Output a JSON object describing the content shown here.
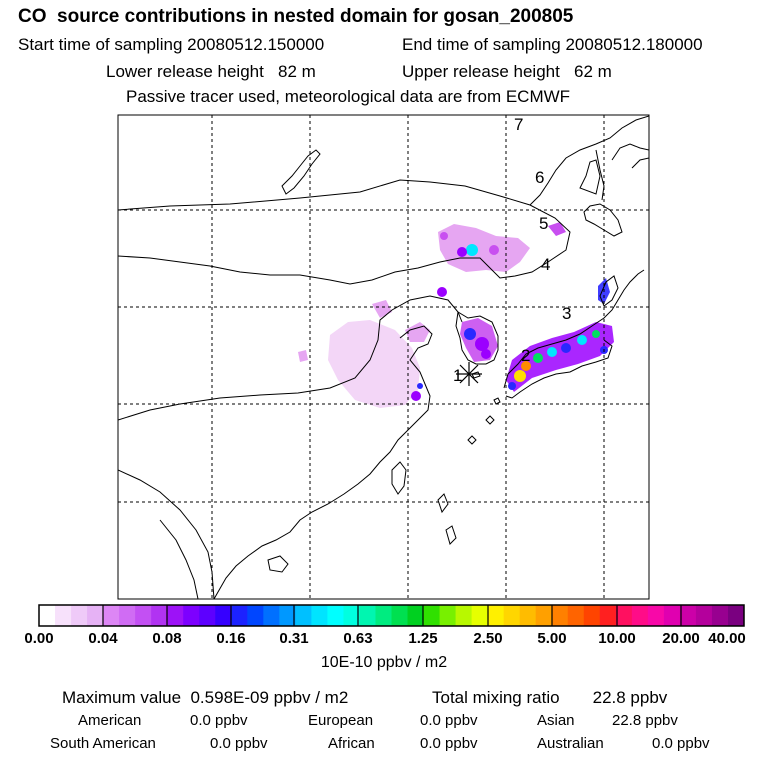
{
  "header": {
    "title": "CO  source contributions in nested domain for gosan_200805",
    "start_label": "Start time of sampling 20080512.150000",
    "end_label": "End time of sampling 20080512.180000",
    "lower_label": "Lower release height   82 m",
    "upper_label": "Upper release height   62 m",
    "tracer_note": "Passive tracer used, meteorological data are from ECMWF"
  },
  "map": {
    "release_marker": "asterisk-icon",
    "trajectory_labels": [
      "1",
      "2",
      "3",
      "4",
      "5",
      "6",
      "7"
    ],
    "plume_colors": {
      "faint": "#f3d6f7",
      "light": "#e6a6f2",
      "medium": "#c84ff0",
      "violet": "#9b00ff",
      "blue": "#2a28ff",
      "cyan": "#00e6ff",
      "green": "#00e060",
      "yellow": "#ffe000",
      "orange": "#ff8c00"
    }
  },
  "colorbar": {
    "ticks": [
      "0.00",
      "0.04",
      "0.08",
      "0.16",
      "0.31",
      "0.63",
      "1.25",
      "2.50",
      "5.00",
      "10.00",
      "20.00",
      "40.00"
    ],
    "unit_label": "10E-10 ppbv / m2",
    "colors": [
      "#ffffff",
      "#f7e1fb",
      "#efcaf8",
      "#e6b2f5",
      "#dd86f5",
      "#d06cf4",
      "#c350f3",
      "#b133f2",
      "#9d12f7",
      "#7d00ff",
      "#5d00ff",
      "#3600ff",
      "#1c22ff",
      "#0046ff",
      "#0070ff",
      "#0098ff",
      "#00c0ff",
      "#00e4ff",
      "#00ffff",
      "#00ffe0",
      "#00f6b0",
      "#00ec80",
      "#00e050",
      "#00d020",
      "#30e000",
      "#78f000",
      "#b8f800",
      "#e6ff00",
      "#fff000",
      "#ffd600",
      "#ffbc00",
      "#ffa000",
      "#ff8000",
      "#ff6400",
      "#ff4400",
      "#ff2020",
      "#ff1060",
      "#ff0c88",
      "#f808a8",
      "#e000b0",
      "#cc00a8",
      "#b4009c",
      "#980090",
      "#7a0080"
    ]
  },
  "stats": {
    "max_value": "Maximum value  0.598E-09 ppbv / m2",
    "total_mixing": "Total mixing ratio       22.8 ppbv",
    "american_label": "American",
    "american_value": "0.0 ppbv",
    "european_label": "European",
    "european_value": "0.0 ppbv",
    "asian_label": "Asian",
    "asian_value": "22.8 ppbv",
    "south_american_label": "South American",
    "south_american_value": "0.0 ppbv",
    "african_label": "African",
    "african_value": "0.0 ppbv",
    "australian_label": "Australian",
    "australian_value": "0.0 ppbv"
  }
}
